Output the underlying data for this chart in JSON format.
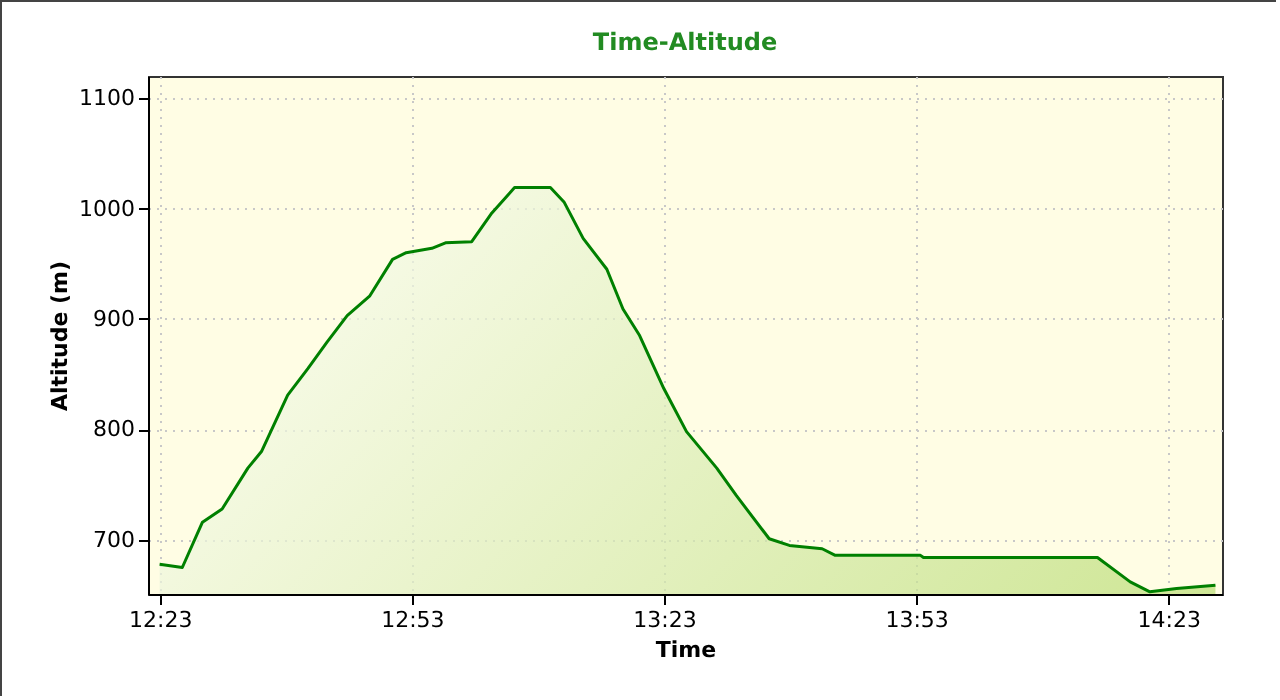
{
  "chart_data": {
    "type": "area",
    "title": "Time-Altitude",
    "xlabel": "Time",
    "ylabel": "Altitude (m)",
    "x": [
      12.383,
      12.428,
      12.468,
      12.507,
      12.558,
      12.585,
      12.637,
      12.677,
      12.715,
      12.755,
      12.8,
      12.845,
      12.872,
      12.923,
      12.95,
      13.002,
      13.042,
      13.087,
      13.158,
      13.185,
      13.223,
      13.27,
      13.302,
      13.335,
      13.383,
      13.428,
      13.488,
      13.527,
      13.592,
      13.632,
      13.697,
      13.723,
      13.892,
      13.898,
      14.243,
      14.308,
      14.347,
      14.4,
      14.477
    ],
    "series": [
      {
        "color": "#008000",
        "values": [
          678,
          675,
          716,
          728,
          765,
          780,
          831,
          855,
          879,
          903,
          921,
          954,
          960,
          964,
          969,
          970,
          996,
          1019,
          1019,
          1006,
          973,
          945,
          909,
          885,
          837,
          798,
          765,
          740,
          701,
          695,
          692,
          686,
          686,
          684,
          684,
          662,
          653,
          656,
          659
        ]
      }
    ],
    "xlim": [
      12.36,
      14.49
    ],
    "xticks": [
      {
        "value": 12.3833,
        "label": "12:23"
      },
      {
        "value": 12.8833,
        "label": "12:53"
      },
      {
        "value": 13.3833,
        "label": "13:23"
      },
      {
        "value": 13.8833,
        "label": "13:53"
      },
      {
        "value": 14.3833,
        "label": "14:23"
      }
    ],
    "ylim": [
      651,
      1120
    ],
    "yticks": [
      700,
      800,
      900,
      1000,
      1100
    ],
    "grid": true
  }
}
